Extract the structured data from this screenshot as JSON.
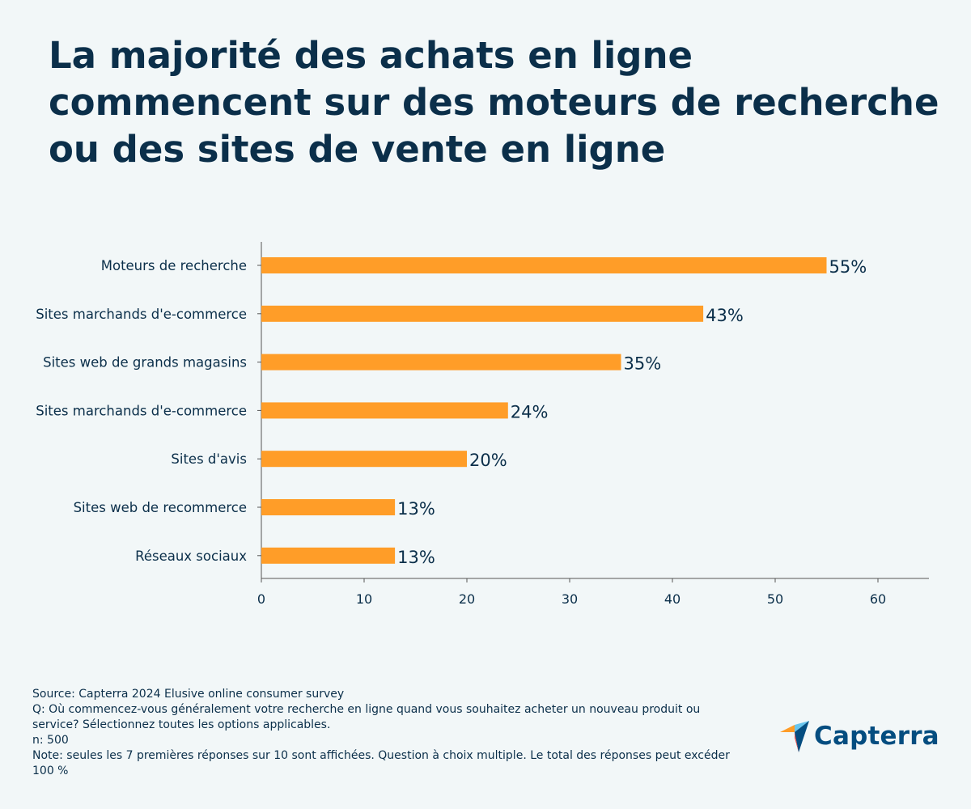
{
  "title_lines": [
    "La majorité des achats en ligne",
    "commencent sur des moteurs de recherche",
    "ou des sites de vente en ligne"
  ],
  "chart_data": {
    "type": "bar",
    "orientation": "horizontal",
    "categories": [
      "Moteurs de recherche",
      "Sites marchands d'e-commerce",
      "Sites web de grands magasins",
      "Sites marchands d'e-commerce",
      "Sites d'avis",
      "Sites web de recommerce",
      "Réseaux sociaux"
    ],
    "values": [
      55,
      43,
      35,
      24,
      20,
      13,
      13
    ],
    "value_labels": [
      "55%",
      "43%",
      "35%",
      "24%",
      "20%",
      "13%",
      "13%"
    ],
    "xticks": [
      0,
      10,
      20,
      30,
      40,
      50,
      60
    ],
    "xlim": [
      0,
      65
    ],
    "bar_color": "#ff9d28",
    "text_color": "#0b2f4a",
    "grid": false,
    "legend": "none"
  },
  "footer": {
    "source": "Source: Capterra 2024 Elusive online consumer survey",
    "question_line1": "Q: Où commencez-vous généralement votre recherche en ligne quand vous souhaitez acheter un nouveau produit ou",
    "question_line2": "service? Sélectionnez toutes les options applicables.",
    "sample": "n: 500",
    "note_line1": "Note: seules les 7 premières réponses sur 10 sont affichées. Question à choix multiple. Le total des réponses peut excéder",
    "note_line2": "100 %"
  },
  "logo": {
    "text": "Capterra",
    "icon": "capterra-arrow-icon",
    "colors": [
      "#ff9d28",
      "#68c5ed",
      "#044d80",
      "#e54747"
    ]
  }
}
